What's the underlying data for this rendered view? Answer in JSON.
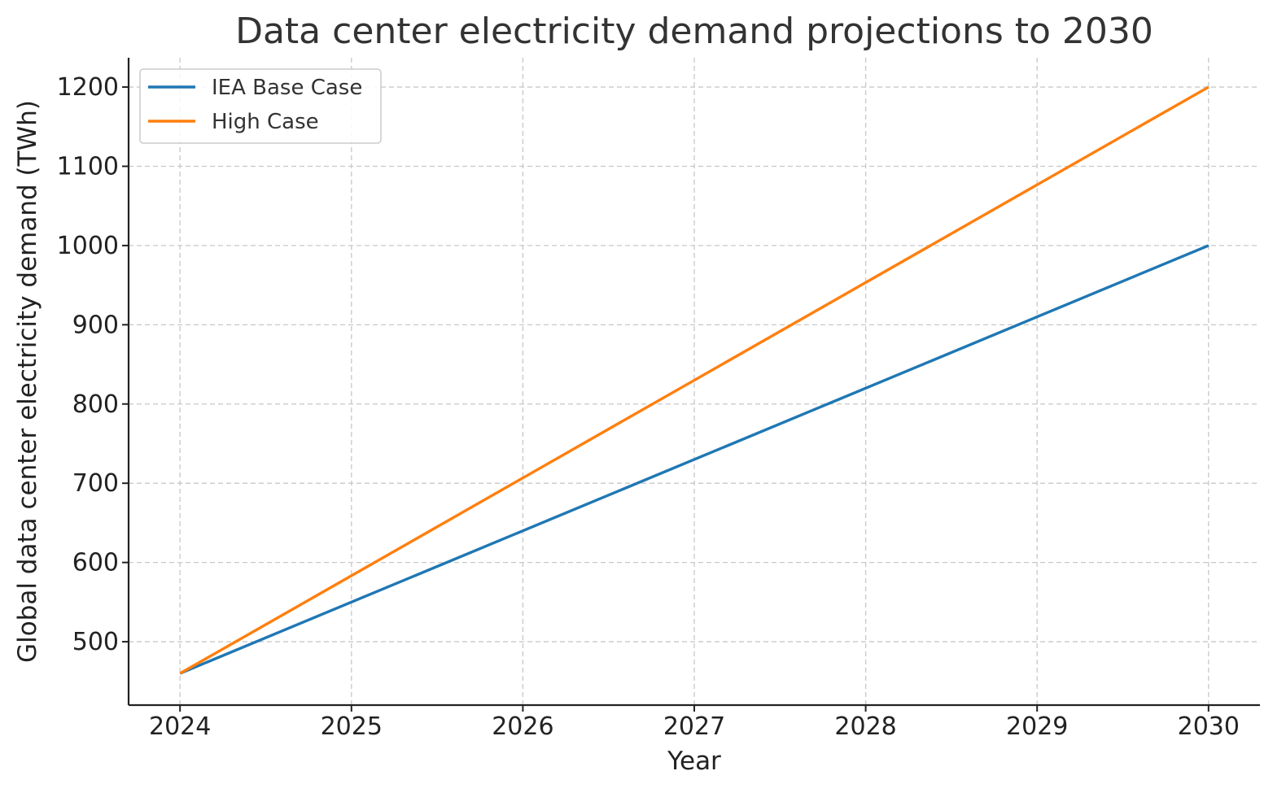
{
  "chart_data": {
    "type": "line",
    "title": "Data center electricity demand projections to 2030",
    "xlabel": "Year",
    "ylabel": "Global data center electricity demand (TWh)",
    "x": [
      2024,
      2025,
      2026,
      2027,
      2028,
      2029,
      2030
    ],
    "xlim": [
      2023.7,
      2030.3
    ],
    "ylim": [
      420,
      1237
    ],
    "xticks": [
      "2024",
      "2025",
      "2026",
      "2027",
      "2028",
      "2029",
      "2030"
    ],
    "yticks": [
      500,
      600,
      700,
      800,
      900,
      1000,
      1100,
      1200
    ],
    "grid": true,
    "legend_position": "top-left",
    "series": [
      {
        "name": "IEA Base Case",
        "color": "#1f77b4",
        "values": [
          460,
          550,
          640,
          730,
          820,
          910,
          1000
        ]
      },
      {
        "name": "High Case",
        "color": "#ff7f0e",
        "values": [
          460,
          583.3,
          706.7,
          830,
          953.3,
          1076.7,
          1200
        ]
      }
    ]
  }
}
